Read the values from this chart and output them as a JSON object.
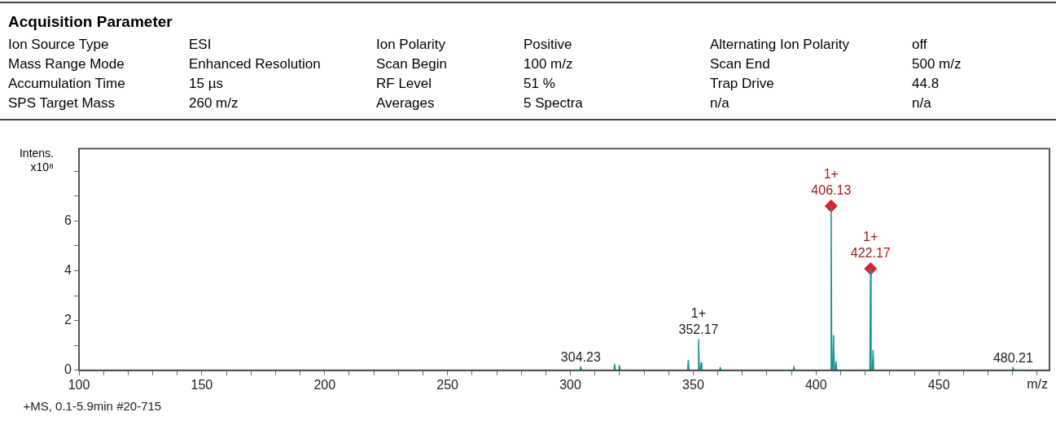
{
  "chart_data": {
    "type": "line",
    "title": "Acquisition Parameter",
    "annotations": [
      "Ion Source Type",
      "ESI",
      "Ion Polarity",
      "Positive",
      "Alternating Ion Polarity",
      "off",
      "Mass Range Mode",
      "Enhanced Resolution",
      "Scan Begin",
      "100 m/z",
      "Scan End",
      "500 m/z",
      "Accumulation Time",
      "15 µs",
      "RF Level",
      "51 %",
      "Trap Drive",
      "44.8",
      "SPS Target Mass",
      "260 m/z",
      "Averages",
      "5 Spectra",
      "n/a",
      "n/a",
      {
        "text": "1+\n406.13",
        "x": 406.13,
        "y": 6.6
      },
      {
        "text": "1+\n422.17",
        "x": 422.17,
        "y": 4.08
      },
      {
        "text": "1+\n352.17",
        "x": 352.17,
        "y": 1.24
      },
      {
        "text": "304.23",
        "x": 304.23,
        "y": 0.15
      },
      {
        "text": "480.21",
        "x": 480.21,
        "y": 0.12
      }
    ],
    "xlabel": "m/z",
    "ylabel": "Intens.\nx10⁸",
    "series": [
      {
        "name": "+MS, 0.1-5.9min #20-715",
        "color": "#1a9490",
        "marker": "none",
        "line_style": "solid",
        "x": [
          303.9,
          304.23,
          304.5,
          317.7,
          318,
          318.3,
          319.7,
          320,
          320.3,
          347.7,
          348,
          348.3,
          351.9,
          352.17,
          352.5,
          352.9,
          353.2,
          353.5,
          360.7,
          361,
          361.3,
          390.7,
          391,
          391.3,
          405.9,
          406.13,
          406.4,
          406.8,
          407.1,
          407.4,
          407.8,
          408.1,
          408.4,
          421.9,
          422.17,
          422.4,
          422.9,
          423.2,
          423.5,
          479.9,
          480.21,
          480.5
        ],
        "values": [
          0,
          0.15,
          0,
          0,
          0.25,
          0,
          0,
          0.2,
          0,
          0,
          0.4,
          0,
          0,
          1.24,
          0,
          0,
          0.3,
          0,
          0,
          0.12,
          0,
          0,
          0.15,
          0,
          0,
          6.6,
          0,
          0,
          1.4,
          0,
          0,
          0.35,
          0,
          0,
          4.08,
          0,
          0,
          0.8,
          0,
          0,
          0.12,
          0
        ]
      },
      {
        "color": "#e0202a",
        "type": "scatter",
        "marker": "diamond",
        "x": [
          406.13,
          422.17
        ],
        "values": [
          6.6,
          4.08
        ]
      }
    ],
    "xlim": [
      100,
      495
    ],
    "ylim": [
      0,
      8.9
    ],
    "xticks": [
      100,
      {
        "value": 110,
        "label": null
      },
      {
        "value": 120,
        "label": null
      },
      {
        "value": 130,
        "label": null
      },
      {
        "value": 140,
        "label": null
      },
      150,
      {
        "value": 160,
        "label": null
      },
      {
        "value": 170,
        "label": null
      },
      {
        "value": 180,
        "label": null
      },
      {
        "value": 190,
        "label": null
      },
      200,
      {
        "value": 210,
        "label": null
      },
      {
        "value": 220,
        "label": null
      },
      {
        "value": 230,
        "label": null
      },
      {
        "value": 240,
        "label": null
      },
      250,
      {
        "value": 260,
        "label": null
      },
      {
        "value": 270,
        "label": null
      },
      {
        "value": 280,
        "label": null
      },
      {
        "value": 290,
        "label": null
      },
      300,
      {
        "value": 310,
        "label": null
      },
      {
        "value": 320,
        "label": null
      },
      {
        "value": 330,
        "label": null
      },
      {
        "value": 340,
        "label": null
      },
      350,
      {
        "value": 360,
        "label": null
      },
      {
        "value": 370,
        "label": null
      },
      {
        "value": 380,
        "label": null
      },
      {
        "value": 390,
        "label": null
      },
      400,
      {
        "value": 410,
        "label": null
      },
      {
        "value": 420,
        "label": null
      },
      {
        "value": 430,
        "label": null
      },
      {
        "value": 440,
        "label": null
      },
      450,
      {
        "value": 460,
        "label": null
      },
      {
        "value": 470,
        "label": null
      },
      {
        "value": 480,
        "label": null
      },
      {
        "value": 490,
        "label": null
      }
    ],
    "yticks": [
      0,
      {
        "value": 1,
        "label": null
      },
      2,
      {
        "value": 3,
        "label": null
      },
      4,
      {
        "value": 5,
        "label": null
      },
      6,
      {
        "value": 7,
        "label": null
      },
      {
        "value": 8,
        "label": null
      }
    ],
    "grid": false,
    "legend": "bottom"
  }
}
